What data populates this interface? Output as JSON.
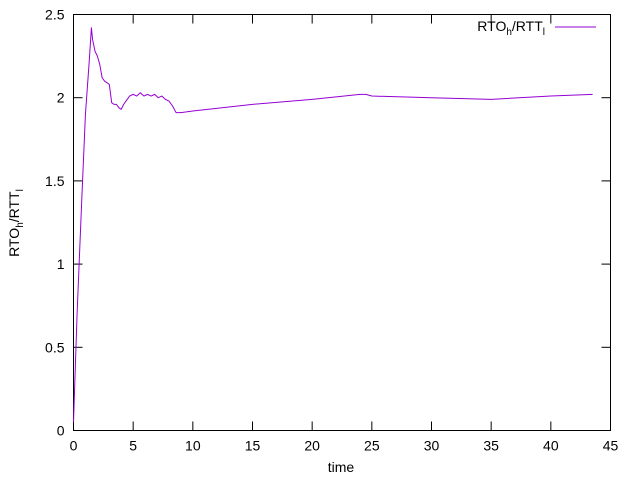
{
  "chart_data": {
    "type": "line",
    "title": "",
    "xlabel": "time",
    "ylabel": {
      "base": "RTO",
      "sub1": "h",
      "mid": "/RTT",
      "sub2": "l"
    },
    "xlim": [
      0,
      45
    ],
    "ylim": [
      0,
      2.5
    ],
    "xticks": [
      0,
      5,
      10,
      15,
      20,
      25,
      30,
      35,
      40,
      45
    ],
    "yticks": [
      0,
      0.5,
      1,
      1.5,
      2,
      2.5
    ],
    "xtick_labels": [
      "0",
      "5",
      "10",
      "15",
      "20",
      "25",
      "30",
      "35",
      "40",
      "45"
    ],
    "ytick_labels": [
      "0",
      "0.5",
      "1",
      "1.5",
      "2",
      "2.5"
    ],
    "grid": false,
    "legend_position": "top-right",
    "series": [
      {
        "name": {
          "base": "RTO",
          "sub1": "h",
          "mid": "/RTT",
          "sub2": "l"
        },
        "color": "#9400d3",
        "x": [
          0.0,
          0.3,
          0.7,
          1.0,
          1.3,
          1.5,
          1.6,
          1.8,
          2.0,
          2.2,
          2.4,
          2.6,
          2.8,
          3.0,
          3.2,
          3.4,
          3.6,
          3.8,
          4.0,
          4.2,
          4.4,
          4.7,
          5.0,
          5.3,
          5.6,
          5.9,
          6.2,
          6.5,
          6.8,
          7.1,
          7.4,
          7.7,
          8.0,
          8.3,
          8.6,
          9.0,
          10.0,
          15.0,
          20.0,
          24.0,
          24.5,
          25.0,
          30.0,
          35.0,
          40.0,
          43.5
        ],
        "y": [
          0.05,
          0.7,
          1.4,
          1.9,
          2.2,
          2.42,
          2.35,
          2.28,
          2.25,
          2.2,
          2.12,
          2.1,
          2.09,
          2.08,
          1.97,
          1.96,
          1.96,
          1.94,
          1.93,
          1.96,
          1.98,
          2.01,
          2.02,
          2.01,
          2.03,
          2.01,
          2.02,
          2.01,
          2.02,
          2.0,
          2.01,
          1.99,
          1.98,
          1.95,
          1.91,
          1.91,
          1.92,
          1.96,
          1.99,
          2.02,
          2.02,
          2.01,
          2.0,
          1.99,
          2.01,
          2.02
        ]
      }
    ]
  }
}
